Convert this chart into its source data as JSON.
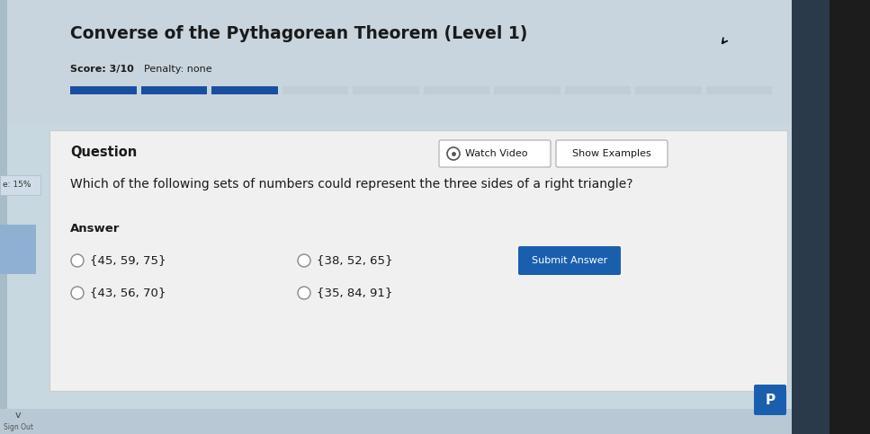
{
  "title": "Converse of the Pythagorean Theorem (Level 1)",
  "score_label": "Score: 3/10",
  "penalty_label": "Penalty: none",
  "progress_total_segments": 10,
  "progress_filled_segments": 3,
  "sidebar_label": "e: 15%",
  "question_label": "Question",
  "watch_video_label": "Watch Video",
  "show_examples_label": "Show Examples",
  "question_text": "Which of the following sets of numbers could represent the three sides of a right triangle?",
  "answer_label": "Answer",
  "options_col1": [
    "{45, 59, 75}",
    "{43, 56, 70}"
  ],
  "options_col2": [
    "{38, 52, 65}",
    "{35, 84, 91}"
  ],
  "submit_label": "Submit Answer",
  "p_label": "P",
  "bg_light_blue": "#c8d8e0",
  "bg_header": "#c5d3dc",
  "bg_panel": "#f0f0f0",
  "bg_white": "#ffffff",
  "bg_right_dark": "#1a1a2e",
  "bg_left_strip": "#b8c8d4",
  "progress_filled_color": "#1a4fa0",
  "progress_empty_color": "#c0cdd6",
  "submit_btn_color": "#1a5fad",
  "submit_btn_text_color": "#ffffff",
  "p_btn_color": "#1a5fad",
  "p_btn_text_color": "#ffffff",
  "text_dark": "#1a1a1a",
  "border_color": "#aaaaaa"
}
